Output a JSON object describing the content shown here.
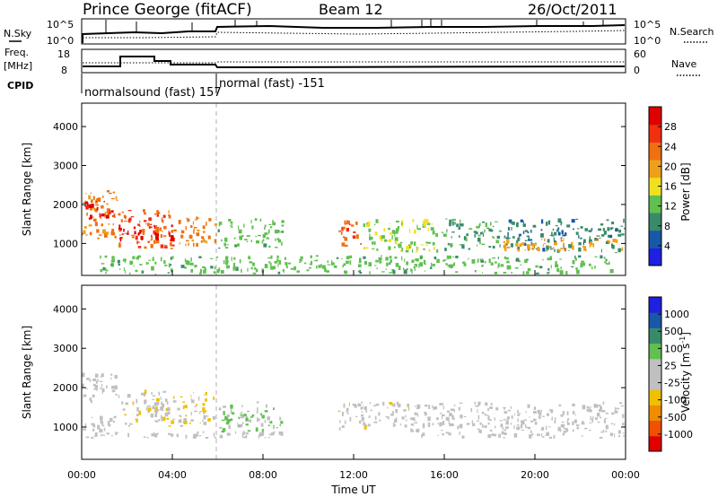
{
  "header": {
    "station": "Prince George (fitACF)",
    "beam": "Beam 12",
    "date": "26/Oct/2011"
  },
  "panels": {
    "nsky": {
      "label": "N.Sky",
      "left_ticks": [
        "10^5",
        "10^0"
      ],
      "right_ticks": [
        "10^5",
        "10^0"
      ],
      "right_label": "N.Search"
    },
    "freq": {
      "label_line1": "Freq.",
      "label_line2": "[MHz]",
      "left_ticks": [
        "18",
        "8"
      ],
      "right_ticks": [
        "60",
        "0"
      ],
      "right_label": "Nave"
    },
    "cpid": {
      "label": "CPID",
      "modes": [
        "normalsound (fast) 157",
        "normal (fast) -151"
      ]
    }
  },
  "colors": {
    "power_scale": [
      "#2020e0",
      "#1858a8",
      "#3a8a6a",
      "#60c050",
      "#f0e020",
      "#f0a018",
      "#f07010",
      "#f03010",
      "#e00000"
    ],
    "velocity_scale": [
      "#e00000",
      "#f05000",
      "#f08c00",
      "#f0c000",
      "#c0c0c0",
      "#c0c0c0",
      "#60c050",
      "#3a8a6a",
      "#1858a8",
      "#2020e0"
    ],
    "frame": "#000000",
    "marker": "#b0b0b0"
  },
  "chart_data": [
    {
      "type": "heatmap",
      "title": "",
      "xlabel": "",
      "ylabel": "Slant Range [km]",
      "y_ticks": [
        1000,
        2000,
        3000,
        4000
      ],
      "ylim": [
        180,
        4600
      ],
      "xlim_hours": [
        0,
        24
      ],
      "colorbar": {
        "label": "Power [dB]",
        "ticks": [
          "4",
          "8",
          "12",
          "16",
          "20",
          "24",
          "28"
        ],
        "range": [
          0,
          32
        ]
      },
      "regions": [
        {
          "start": 0.0,
          "end": 1.6,
          "r_low": 1100,
          "r_high": 2400,
          "value": 22
        },
        {
          "start": 0.0,
          "end": 1.6,
          "r_low": 1600,
          "r_high": 2100,
          "value": 29
        },
        {
          "start": 1.6,
          "end": 4.2,
          "r_low": 850,
          "r_high": 1900,
          "value": 24
        },
        {
          "start": 1.6,
          "end": 4.2,
          "r_low": 1000,
          "r_high": 1500,
          "value": 30
        },
        {
          "start": 4.2,
          "end": 6.0,
          "r_low": 900,
          "r_high": 1700,
          "value": 22
        },
        {
          "start": 6.0,
          "end": 9.0,
          "r_low": 850,
          "r_high": 1650,
          "value": 12
        },
        {
          "start": 11.3,
          "end": 12.4,
          "r_low": 900,
          "r_high": 1600,
          "value": 24
        },
        {
          "start": 12.4,
          "end": 15.8,
          "r_low": 750,
          "r_high": 1650,
          "value": 14
        },
        {
          "start": 15.8,
          "end": 18.6,
          "r_low": 800,
          "r_high": 1650,
          "value": 10
        },
        {
          "start": 18.6,
          "end": 24.0,
          "r_low": 750,
          "r_high": 1650,
          "value": 8
        },
        {
          "start": 18.6,
          "end": 24.0,
          "r_low": 780,
          "r_high": 1150,
          "value": 20
        },
        {
          "start": 0.8,
          "end": 23.5,
          "r_low": 200,
          "r_high": 700,
          "value": 12
        }
      ]
    },
    {
      "type": "heatmap",
      "title": "",
      "xlabel": "Time UT",
      "ylabel": "Slant Range [km]",
      "x_ticks": [
        "00:00",
        "04:00",
        "08:00",
        "12:00",
        "16:00",
        "20:00",
        "00:00"
      ],
      "y_ticks": [
        1000,
        2000,
        3000,
        4000
      ],
      "ylim": [
        180,
        4600
      ],
      "xlim_hours": [
        0,
        24
      ],
      "colorbar": {
        "label": "Velocity [m s^-1]",
        "ticks": [
          "1000",
          "500",
          "100",
          "25",
          "-25",
          "-100",
          "-500",
          "-1000"
        ],
        "range": [
          -1200,
          1200
        ]
      },
      "regions": [
        {
          "start": 0.0,
          "end": 1.6,
          "r_low": 1600,
          "r_high": 2400,
          "value": 30
        },
        {
          "start": 0.0,
          "end": 1.6,
          "r_low": 700,
          "r_high": 1300,
          "value": 0
        },
        {
          "start": 1.6,
          "end": 4.2,
          "r_low": 1000,
          "r_high": 2000,
          "value": -150
        },
        {
          "start": 4.2,
          "end": 6.0,
          "r_low": 1000,
          "r_high": 1900,
          "value": -200
        },
        {
          "start": 6.0,
          "end": 9.0,
          "r_low": 850,
          "r_high": 1650,
          "value": 250
        },
        {
          "start": 11.3,
          "end": 14.5,
          "r_low": 900,
          "r_high": 1650,
          "value": -120
        },
        {
          "start": 14.5,
          "end": 24.0,
          "r_low": 700,
          "r_high": 1650,
          "value": 0
        },
        {
          "start": 0.8,
          "end": 9.0,
          "r_low": 700,
          "r_high": 900,
          "value": 50
        }
      ]
    }
  ]
}
